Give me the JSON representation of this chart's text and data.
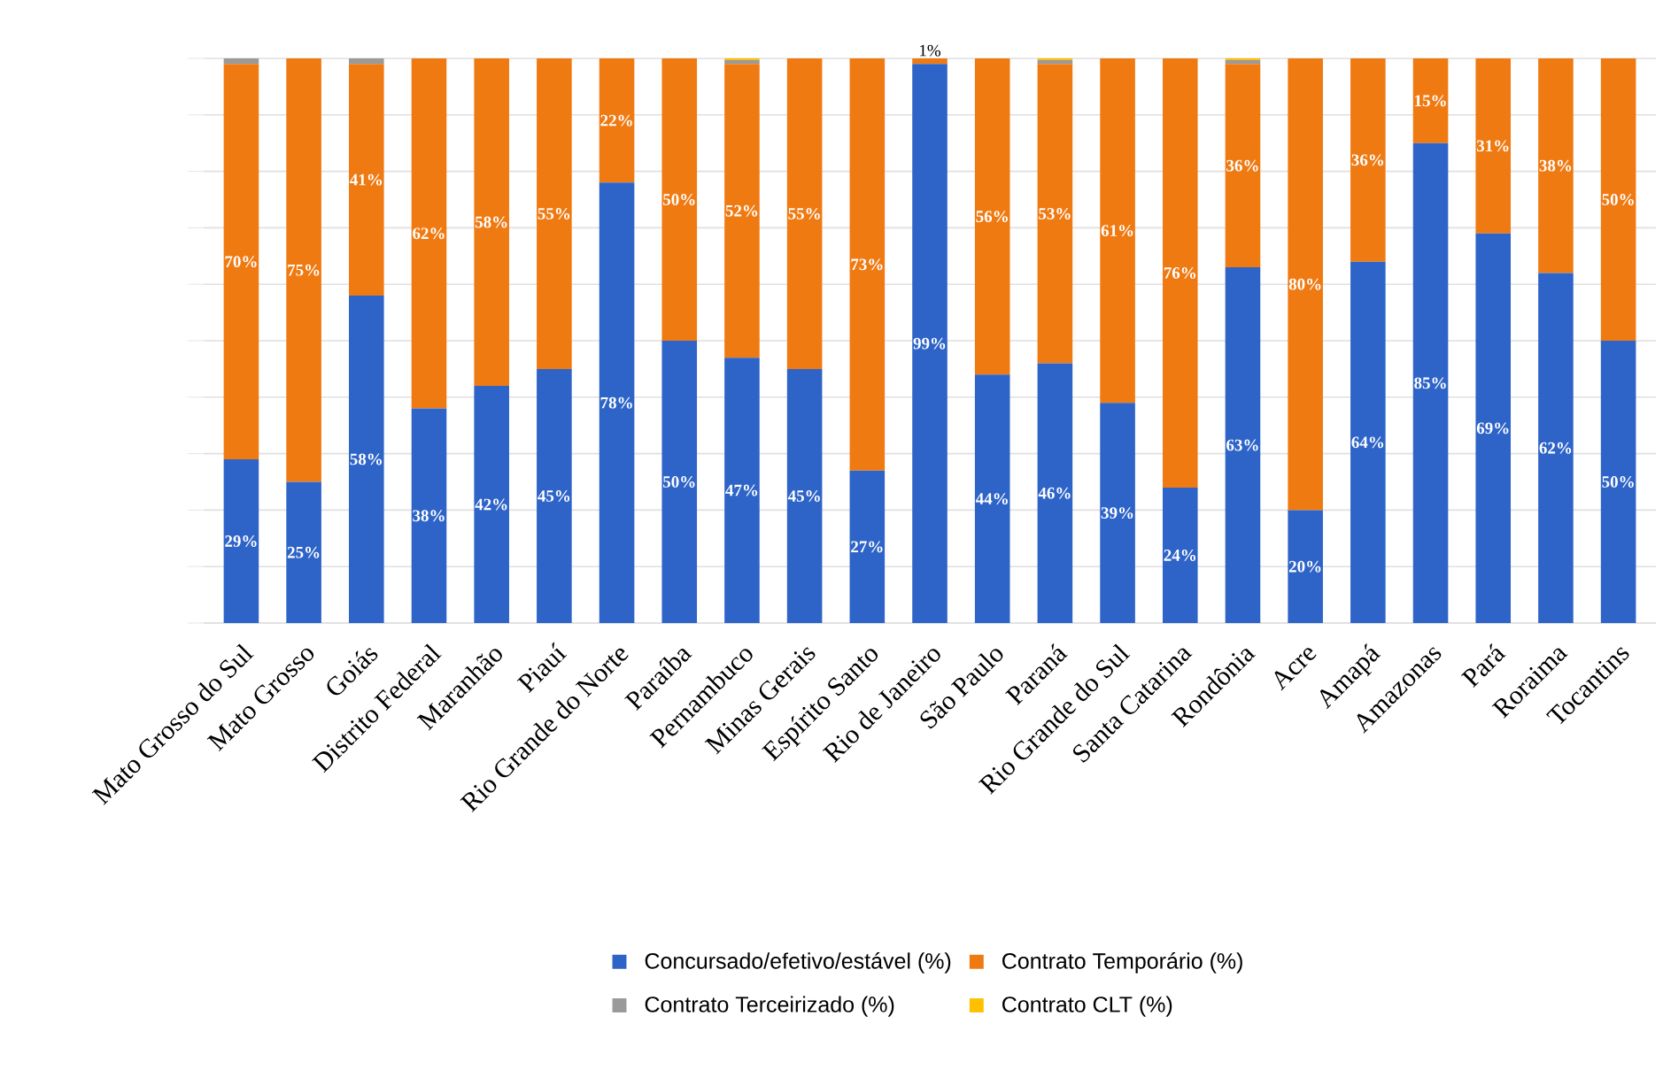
{
  "chart_data": {
    "type": "bar",
    "stacked": true,
    "categories": [
      "Mato Grosso do Sul",
      "Mato Grosso",
      "Goiás",
      "Distrito Federal",
      "Maranhão",
      "Piauí",
      "Rio Grande do Norte",
      "Paraíba",
      "Pernambuco",
      "Minas Gerais",
      "Espírito Santo",
      "Rio de Janeiro",
      "São Paulo",
      "Paraná",
      "Rio Grande do Sul",
      "Santa Catarina",
      "Rondônia",
      "Acre",
      "Amapá",
      "Amazonas",
      "Pará",
      "Roraima",
      "Tocantins"
    ],
    "series": [
      {
        "name": "Concursado/efetivo/estável (%)",
        "color": "#2e64c8",
        "values": [
          29,
          25,
          58,
          38,
          42,
          45,
          78,
          50,
          47,
          45,
          27,
          99,
          44,
          46,
          39,
          24,
          63,
          20,
          64,
          85,
          69,
          62,
          50
        ],
        "value_labels": [
          "29%",
          "25%",
          "58%",
          "38%",
          "42%",
          "45%",
          "78%",
          "50%",
          "47%",
          "45%",
          "27%",
          "99%",
          "44%",
          "46%",
          "39%",
          "24%",
          "63%",
          "20%",
          "64%",
          "85%",
          "69%",
          "62%",
          "50%"
        ]
      },
      {
        "name": "Contrato Temporário (%)",
        "color": "#f07a12",
        "values": [
          70,
          75,
          41,
          62,
          58,
          55,
          22,
          50,
          52,
          55,
          73,
          1,
          56,
          53,
          61,
          76,
          36,
          80,
          36,
          15,
          31,
          38,
          50
        ],
        "value_labels": [
          "70%",
          "75%",
          "41%",
          "62%",
          "58%",
          "55%",
          "22%",
          "50%",
          "52%",
          "55%",
          "73%",
          "1%",
          "56%",
          "53%",
          "61%",
          "76%",
          "36%",
          "80%",
          "36%",
          "15%",
          "31%",
          "38%",
          "50%"
        ]
      },
      {
        "name": "Contrato Terceirizado (%)",
        "color": "#9a9a9a",
        "values": [
          1,
          0,
          1,
          0,
          0,
          0,
          0,
          0,
          0.7,
          0,
          0,
          0,
          0,
          0.7,
          0,
          0,
          0.7,
          0,
          0,
          0,
          0,
          0,
          0
        ]
      },
      {
        "name": "Contrato CLT (%)",
        "color": "#ffc000",
        "values": [
          0,
          0,
          0,
          0,
          0,
          0,
          0,
          0,
          0.3,
          0,
          0,
          0,
          0,
          0.3,
          0,
          0,
          0.3,
          0,
          0,
          0,
          0,
          0,
          0
        ]
      }
    ],
    "ylim": [
      0,
      100
    ],
    "yticks": [
      {
        "value": 0,
        "label": null
      },
      {
        "value": 10,
        "label": null
      },
      {
        "value": 20,
        "label": null
      },
      {
        "value": 30,
        "label": null
      },
      {
        "value": 40,
        "label": null
      },
      {
        "value": 50,
        "label": null
      },
      {
        "value": 60,
        "label": null
      },
      {
        "value": 70,
        "label": null
      },
      {
        "value": 80,
        "label": null
      },
      {
        "value": 90,
        "label": null
      },
      {
        "value": 100,
        "label": null
      }
    ],
    "tick_labels": "x",
    "grid": "y",
    "legend": "bottom"
  }
}
